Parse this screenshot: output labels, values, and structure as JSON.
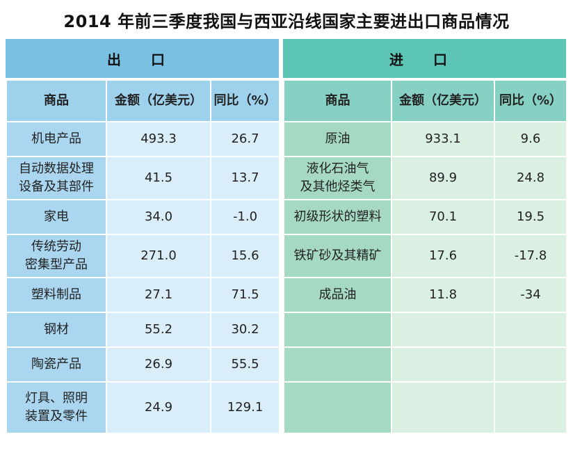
{
  "title": "2014 年前三季度我国与西亚沿线国家主要进出口商品情况",
  "export": {
    "section_label": "出 口",
    "headers": [
      "商品",
      "金额（亿美元）",
      "同比（%）"
    ],
    "rows": [
      {
        "goods": "机电产品",
        "amount": "493.3",
        "yoy": "26.7"
      },
      {
        "goods": "自动数据处理\n设备及其部件",
        "amount": "41.5",
        "yoy": "13.7"
      },
      {
        "goods": "家电",
        "amount": "34.0",
        "yoy": "-1.0"
      },
      {
        "goods": "传统劳动\n密集型产品",
        "amount": "271.0",
        "yoy": "15.6"
      },
      {
        "goods": "塑料制品",
        "amount": "27.1",
        "yoy": "71.5"
      },
      {
        "goods": "钢材",
        "amount": "55.2",
        "yoy": "30.2"
      },
      {
        "goods": "陶瓷产品",
        "amount": "26.9",
        "yoy": "55.5"
      },
      {
        "goods": "灯具、照明\n装置及零件",
        "amount": "24.9",
        "yoy": "129.1"
      }
    ]
  },
  "import": {
    "section_label": "进 口",
    "headers": [
      "商品",
      "金额（亿美元）",
      "同比（%）"
    ],
    "rows": [
      {
        "goods": "原油",
        "amount": "933.1",
        "yoy": "9.6"
      },
      {
        "goods": "液化石油气\n及其他烃类气",
        "amount": "89.9",
        "yoy": "24.8"
      },
      {
        "goods": "初级形状的塑料",
        "amount": "70.1",
        "yoy": "19.5"
      },
      {
        "goods": "铁矿砂及其精矿",
        "amount": "17.6",
        "yoy": "-17.8"
      },
      {
        "goods": "成品油",
        "amount": "11.8",
        "yoy": "-34"
      },
      {
        "goods": "",
        "amount": "",
        "yoy": ""
      },
      {
        "goods": "",
        "amount": "",
        "yoy": ""
      },
      {
        "goods": "",
        "amount": "",
        "yoy": ""
      }
    ]
  }
}
